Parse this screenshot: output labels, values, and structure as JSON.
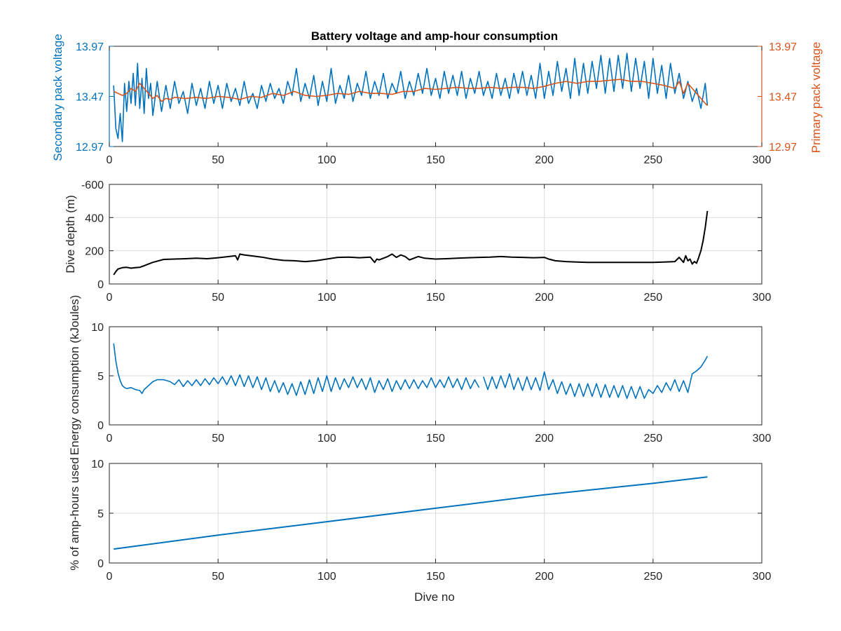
{
  "figure": {
    "title": "Battery voltage and amp-hour consumption",
    "xlabel": "Dive no"
  },
  "colors": {
    "secondary": "#0072BD",
    "primary": "#D95319",
    "depth": "#000000",
    "energy": "#0072BD",
    "amphours": "#0072BD",
    "axis": "#262626",
    "grid": "#dcdcdc"
  },
  "chart_data": [
    {
      "type": "line",
      "title": "Battery voltage and amp-hour consumption",
      "xlabel": "",
      "ylabel": "Secondary pack voltage",
      "ylabel_right": "Primary pack voltage",
      "xlim": [
        0,
        300
      ],
      "ylim": [
        12.97,
        13.97
      ],
      "ylim_right": [
        12.97,
        13.97
      ],
      "xticks": [
        "0",
        "50",
        "100",
        "150",
        "200",
        "250",
        "300"
      ],
      "yticks": [
        "12.97",
        "13.47",
        "13.97"
      ],
      "yticks_right": [
        "12.97",
        "13.47",
        "13.97"
      ],
      "grid": false,
      "series": [
        {
          "name": "Secondary pack voltage",
          "axis": "left",
          "x": [
            2,
            3,
            4,
            5,
            6,
            7,
            8,
            9,
            10,
            11,
            12,
            13,
            14,
            15,
            16,
            17,
            18,
            19,
            20,
            22,
            24,
            26,
            28,
            30,
            32,
            34,
            36,
            38,
            40,
            42,
            44,
            46,
            48,
            50,
            52,
            54,
            56,
            58,
            60,
            62,
            64,
            66,
            68,
            70,
            72,
            74,
            76,
            78,
            80,
            82,
            84,
            86,
            88,
            90,
            92,
            94,
            96,
            98,
            100,
            102,
            104,
            106,
            108,
            110,
            112,
            114,
            116,
            118,
            120,
            122,
            124,
            126,
            128,
            130,
            132,
            134,
            136,
            138,
            140,
            142,
            144,
            146,
            148,
            150,
            152,
            154,
            156,
            158,
            160,
            162,
            164,
            166,
            168,
            170,
            172,
            174,
            176,
            178,
            180,
            182,
            184,
            186,
            188,
            190,
            192,
            194,
            196,
            198,
            200,
            202,
            204,
            206,
            208,
            210,
            212,
            214,
            216,
            218,
            220,
            222,
            224,
            226,
            228,
            230,
            232,
            234,
            236,
            238,
            240,
            242,
            244,
            246,
            248,
            250,
            252,
            254,
            256,
            258,
            260,
            262,
            264,
            266,
            268,
            270,
            272,
            274,
            275
          ],
          "values": [
            13.58,
            13.15,
            13.05,
            13.3,
            13.02,
            13.6,
            13.32,
            13.62,
            13.4,
            13.7,
            13.38,
            13.8,
            13.35,
            13.65,
            13.3,
            13.75,
            13.45,
            13.6,
            13.28,
            13.62,
            13.32,
            13.58,
            13.35,
            13.62,
            13.4,
            13.52,
            13.3,
            13.6,
            13.38,
            13.55,
            13.35,
            13.62,
            13.4,
            13.58,
            13.35,
            13.6,
            13.42,
            13.55,
            13.38,
            13.62,
            13.4,
            13.5,
            13.35,
            13.58,
            13.42,
            13.6,
            13.45,
            13.55,
            13.4,
            13.62,
            13.48,
            13.75,
            13.42,
            13.6,
            13.45,
            13.68,
            13.38,
            13.62,
            13.42,
            13.75,
            13.4,
            13.58,
            13.45,
            13.68,
            13.42,
            13.6,
            13.48,
            13.72,
            13.45,
            13.62,
            13.48,
            13.7,
            13.45,
            13.6,
            13.5,
            13.72,
            13.45,
            13.62,
            13.48,
            13.7,
            13.5,
            13.75,
            13.48,
            13.65,
            13.45,
            13.72,
            13.5,
            13.68,
            13.48,
            13.72,
            13.45,
            13.65,
            13.5,
            13.72,
            13.48,
            13.62,
            13.45,
            13.7,
            13.48,
            13.65,
            13.45,
            13.7,
            13.5,
            13.72,
            13.48,
            13.68,
            13.45,
            13.8,
            13.45,
            13.72,
            13.48,
            13.82,
            13.52,
            13.75,
            13.45,
            13.85,
            13.48,
            13.8,
            13.5,
            13.82,
            13.55,
            13.88,
            13.5,
            13.85,
            13.52,
            13.88,
            13.55,
            13.9,
            13.52,
            13.85,
            13.55,
            13.82,
            13.45,
            13.85,
            13.5,
            13.78,
            13.45,
            13.8,
            13.5,
            13.7,
            13.45,
            13.62,
            13.42,
            13.55,
            13.35,
            13.6,
            13.38
          ]
        },
        {
          "name": "Primary pack voltage",
          "axis": "right",
          "x": [
            2,
            4,
            6,
            8,
            10,
            12,
            14,
            16,
            18,
            20,
            22,
            24,
            26,
            28,
            30,
            35,
            40,
            45,
            50,
            55,
            60,
            65,
            70,
            75,
            80,
            85,
            90,
            95,
            100,
            105,
            110,
            115,
            120,
            125,
            130,
            135,
            140,
            145,
            150,
            155,
            160,
            165,
            170,
            175,
            180,
            185,
            190,
            195,
            200,
            205,
            210,
            215,
            220,
            225,
            230,
            235,
            240,
            245,
            250,
            255,
            260,
            262,
            264,
            266,
            268,
            270,
            272,
            274,
            275
          ],
          "values": [
            13.52,
            13.5,
            13.48,
            13.5,
            13.55,
            13.52,
            13.6,
            13.55,
            13.5,
            13.45,
            13.48,
            13.42,
            13.45,
            13.44,
            13.46,
            13.45,
            13.46,
            13.45,
            13.47,
            13.46,
            13.44,
            13.47,
            13.46,
            13.5,
            13.48,
            13.52,
            13.48,
            13.47,
            13.48,
            13.5,
            13.49,
            13.52,
            13.5,
            13.5,
            13.49,
            13.52,
            13.52,
            13.55,
            13.54,
            13.55,
            13.56,
            13.55,
            13.55,
            13.56,
            13.55,
            13.56,
            13.56,
            13.55,
            13.57,
            13.6,
            13.62,
            13.6,
            13.62,
            13.62,
            13.63,
            13.64,
            13.62,
            13.62,
            13.6,
            13.58,
            13.55,
            13.62,
            13.5,
            13.6,
            13.55,
            13.5,
            13.45,
            13.4,
            13.38
          ]
        }
      ]
    },
    {
      "type": "line",
      "xlabel": "",
      "ylabel": "Dive depth (m)",
      "xlim": [
        0,
        300
      ],
      "ylim": [
        -600,
        0
      ],
      "y_reversed_display": true,
      "xticks": [
        "0",
        "50",
        "100",
        "150",
        "200",
        "250",
        "300"
      ],
      "yticks": [
        "0",
        "200",
        "400",
        "-600"
      ],
      "grid": true,
      "series": [
        {
          "x": [
            2,
            3,
            4,
            6,
            8,
            10,
            12,
            14,
            16,
            18,
            20,
            25,
            30,
            35,
            40,
            45,
            50,
            55,
            58,
            59,
            60,
            62,
            65,
            70,
            75,
            80,
            85,
            90,
            95,
            100,
            105,
            110,
            115,
            120,
            122,
            123,
            124,
            126,
            128,
            130,
            132,
            134,
            136,
            138,
            140,
            142,
            145,
            150,
            155,
            160,
            165,
            170,
            175,
            180,
            185,
            190,
            195,
            200,
            202,
            205,
            210,
            215,
            220,
            225,
            230,
            235,
            240,
            245,
            250,
            255,
            260,
            262,
            264,
            265,
            266,
            267,
            268,
            269,
            270,
            271,
            272,
            273,
            274,
            275
          ],
          "values": [
            -55,
            -75,
            -90,
            -98,
            -100,
            -95,
            -98,
            -100,
            -110,
            -120,
            -130,
            -148,
            -150,
            -152,
            -155,
            -152,
            -158,
            -165,
            -170,
            -145,
            -180,
            -175,
            -170,
            -162,
            -150,
            -142,
            -140,
            -135,
            -140,
            -150,
            -160,
            -162,
            -158,
            -162,
            -130,
            -150,
            -145,
            -155,
            -165,
            -180,
            -160,
            -175,
            -165,
            -145,
            -155,
            -165,
            -155,
            -150,
            -152,
            -155,
            -158,
            -160,
            -162,
            -165,
            -162,
            -160,
            -158,
            -160,
            -150,
            -140,
            -135,
            -132,
            -130,
            -130,
            -130,
            -130,
            -130,
            -130,
            -130,
            -132,
            -135,
            -160,
            -130,
            -170,
            -140,
            -150,
            -120,
            -135,
            -125,
            -160,
            -200,
            -260,
            -340,
            -440
          ]
        }
      ]
    },
    {
      "type": "line",
      "xlabel": "",
      "ylabel": "Energy consumption (kJoules)",
      "xlim": [
        0,
        300
      ],
      "ylim": [
        0,
        10
      ],
      "xticks": [
        "0",
        "50",
        "100",
        "150",
        "200",
        "250",
        "300"
      ],
      "yticks": [
        "0",
        "5",
        "10"
      ],
      "grid": true,
      "series": [
        {
          "x": [
            2,
            3,
            4,
            5,
            6,
            7,
            8,
            10,
            12,
            14,
            15,
            16,
            18,
            20,
            22,
            25,
            28,
            30,
            32,
            34,
            36,
            38,
            40,
            42,
            44,
            46,
            48,
            50,
            52,
            54,
            56,
            58,
            60,
            62,
            64,
            66,
            68,
            70,
            72,
            74,
            76,
            78,
            80,
            82,
            84,
            86,
            88,
            90,
            92,
            94,
            96,
            98,
            100,
            102,
            104,
            106,
            108,
            110,
            112,
            114,
            116,
            118,
            120,
            122,
            124,
            126,
            128,
            130,
            132,
            134,
            136,
            138,
            140,
            142,
            144,
            146,
            148,
            150,
            152,
            154,
            156,
            158,
            160,
            162,
            164,
            166,
            168,
            170,
            172,
            174,
            176,
            178,
            180,
            182,
            184,
            186,
            188,
            190,
            192,
            194,
            196,
            198,
            200,
            202,
            204,
            206,
            208,
            210,
            212,
            214,
            216,
            218,
            220,
            222,
            224,
            226,
            228,
            230,
            232,
            234,
            236,
            238,
            240,
            242,
            244,
            246,
            248,
            250,
            252,
            254,
            256,
            258,
            260,
            262,
            264,
            266,
            268,
            270,
            272,
            274,
            275
          ],
          "values": [
            8.3,
            6.5,
            5.3,
            4.5,
            4.0,
            3.8,
            3.7,
            3.8,
            3.6,
            3.5,
            3.2,
            3.6,
            4.0,
            4.4,
            4.6,
            4.6,
            4.4,
            4.1,
            4.6,
            3.9,
            4.5,
            4.0,
            4.6,
            4.0,
            4.7,
            4.1,
            4.8,
            4.2,
            4.9,
            4.1,
            5.0,
            4.0,
            5.1,
            3.9,
            5.0,
            3.8,
            4.9,
            3.6,
            4.8,
            3.4,
            4.5,
            3.3,
            4.3,
            3.1,
            4.2,
            3.0,
            4.4,
            3.1,
            4.6,
            3.2,
            4.8,
            3.4,
            5.0,
            3.4,
            4.8,
            3.6,
            4.7,
            3.8,
            4.9,
            3.8,
            4.7,
            3.6,
            4.8,
            3.3,
            4.5,
            3.6,
            4.7,
            3.4,
            4.5,
            3.6,
            4.6,
            3.7,
            4.6,
            3.7,
            4.5,
            3.8,
            4.8,
            3.8,
            4.6,
            3.8,
            4.9,
            3.8,
            4.7,
            3.6,
            4.8,
            3.7,
            4.6,
            3.8,
            4.9,
            3.6,
            4.9,
            3.7,
            5.0,
            3.8,
            5.2,
            3.6,
            4.8,
            3.5,
            4.9,
            3.6,
            4.8,
            3.5,
            5.4,
            3.6,
            4.6,
            3.2,
            4.4,
            3.1,
            4.2,
            2.9,
            4.2,
            2.9,
            4.2,
            2.9,
            4.2,
            2.8,
            4.1,
            2.8,
            4.0,
            2.8,
            4.0,
            2.7,
            3.9,
            2.7,
            3.9,
            2.7,
            3.6,
            3.2,
            4.0,
            3.3,
            4.3,
            3.5,
            4.6,
            3.4,
            4.5,
            3.3,
            5.2,
            5.5,
            5.9,
            6.6,
            7.0
          ]
        }
      ]
    },
    {
      "type": "line",
      "xlabel": "Dive no",
      "ylabel": "% of amp-hours used",
      "xlim": [
        0,
        300
      ],
      "ylim": [
        0,
        10
      ],
      "xticks": [
        "0",
        "50",
        "100",
        "150",
        "200",
        "250",
        "300"
      ],
      "yticks": [
        "0",
        "5",
        "10"
      ],
      "grid": true,
      "series": [
        {
          "x": [
            2,
            50,
            100,
            150,
            200,
            250,
            275
          ],
          "values": [
            1.4,
            2.8,
            4.15,
            5.5,
            6.85,
            8.0,
            8.65
          ]
        }
      ]
    }
  ]
}
